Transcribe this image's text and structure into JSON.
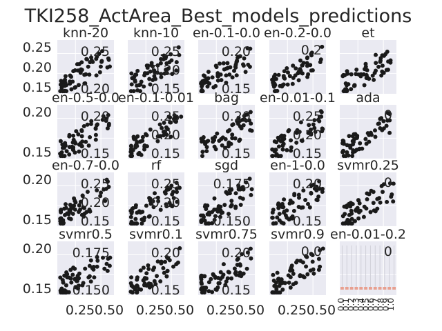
{
  "title": "TKI258_ActArea_Best_models_predictions",
  "colors": {
    "panel_bg": "#eaeaf2",
    "grid": "#ffffff",
    "point": "#1a1a1a",
    "text": "#262626",
    "bar": "#e8a090"
  },
  "chart_data": [
    {
      "type": "scatter",
      "title": "knn-20",
      "xlim": [
        0.1,
        0.55
      ],
      "ylim": [
        0.12,
        0.26
      ],
      "left_ticks": [
        "0.25",
        "0.20",
        "0.15"
      ],
      "right_ticks": [
        "0.25",
        "0.20"
      ],
      "bottom_ticks": []
    },
    {
      "type": "scatter",
      "title": "knn-10",
      "xlim": [
        0.1,
        0.55
      ],
      "ylim": [
        0.12,
        0.26
      ],
      "left_ticks": [],
      "right_ticks": [
        "0.25",
        "0.20",
        "0.15"
      ],
      "bottom_ticks": []
    },
    {
      "type": "scatter",
      "title": "en-0.1-0.0",
      "xlim": [
        0.1,
        0.55
      ],
      "ylim": [
        0.12,
        0.26
      ],
      "left_ticks": [],
      "right_ticks": [
        "0.20",
        "0.15"
      ],
      "bottom_ticks": []
    },
    {
      "type": "scatter",
      "title": "en-0.2-0.0",
      "xlim": [
        0.1,
        0.55
      ],
      "ylim": [
        0.12,
        0.26
      ],
      "left_ticks": [],
      "right_ticks": [
        "0.2"
      ],
      "bottom_ticks": []
    },
    {
      "type": "scatter",
      "title": "et",
      "xlim": [
        0.1,
        0.55
      ],
      "ylim": [
        0.12,
        0.26
      ],
      "left_ticks": [],
      "right_ticks": [],
      "bottom_ticks": []
    },
    {
      "type": "scatter",
      "title": "en-0.5-0.0",
      "xlim": [
        0.1,
        0.55
      ],
      "ylim": [
        0.13,
        0.22
      ],
      "left_ticks": [
        "0.20",
        "0.15"
      ],
      "right_ticks": [
        "0.20",
        "0.15"
      ],
      "bottom_ticks": []
    },
    {
      "type": "scatter",
      "title": "en-0.1-0.01",
      "xlim": [
        0.1,
        0.55
      ],
      "ylim": [
        0.13,
        0.22
      ],
      "left_ticks": [],
      "right_ticks": [
        "0.25",
        "0.20",
        "0.15"
      ],
      "bottom_ticks": []
    },
    {
      "type": "scatter",
      "title": "bag",
      "xlim": [
        0.1,
        0.55
      ],
      "ylim": [
        0.13,
        0.22
      ],
      "left_ticks": [],
      "right_ticks": [
        "0.20",
        "0.15"
      ],
      "bottom_ticks": []
    },
    {
      "type": "scatter",
      "title": "en-0.01-0.1",
      "xlim": [
        0.1,
        0.55
      ],
      "ylim": [
        0.13,
        0.22
      ],
      "left_ticks": [],
      "right_ticks": [
        "0.25",
        "0.20",
        "0.15"
      ],
      "bottom_ticks": []
    },
    {
      "type": "scatter",
      "title": "ada",
      "xlim": [
        0.1,
        0.55
      ],
      "ylim": [
        0.13,
        0.22
      ],
      "left_ticks": [],
      "right_ticks": [
        "0"
      ],
      "bottom_ticks": []
    },
    {
      "type": "scatter",
      "title": "en-0.7-0.0",
      "xlim": [
        0.1,
        0.55
      ],
      "ylim": [
        0.13,
        0.22
      ],
      "left_ticks": [
        "0.20",
        "0.15"
      ],
      "right_ticks": [
        "0.25",
        "0.20",
        "0.15"
      ],
      "bottom_ticks": []
    },
    {
      "type": "scatter",
      "title": "rf",
      "xlim": [
        0.1,
        0.55
      ],
      "ylim": [
        0.13,
        0.22
      ],
      "left_ticks": [],
      "right_ticks": [
        "0.25",
        "0.20",
        "0.15"
      ],
      "bottom_ticks": []
    },
    {
      "type": "scatter",
      "title": "sgd",
      "xlim": [
        0.1,
        0.55
      ],
      "ylim": [
        0.13,
        0.22
      ],
      "left_ticks": [],
      "right_ticks": [
        "0.175",
        "0.150"
      ],
      "bottom_ticks": []
    },
    {
      "type": "scatter",
      "title": "en-1-0.0",
      "xlim": [
        0.1,
        0.55
      ],
      "ylim": [
        0.13,
        0.22
      ],
      "left_ticks": [],
      "right_ticks": [
        "0.20",
        "0.15"
      ],
      "bottom_ticks": []
    },
    {
      "type": "scatter",
      "title": "svmr0.25",
      "xlim": [
        0.1,
        0.55
      ],
      "ylim": [
        0.13,
        0.22
      ],
      "left_ticks": [],
      "right_ticks": [
        "0"
      ],
      "bottom_ticks": []
    },
    {
      "type": "scatter",
      "title": "svmr0.5",
      "xlim": [
        0.1,
        0.55
      ],
      "ylim": [
        0.13,
        0.22
      ],
      "left_ticks": [
        "0.20",
        "0.15"
      ],
      "right_ticks": [
        "0.175",
        "0.150"
      ],
      "bottom_ticks": [
        "0.25",
        "0.50"
      ]
    },
    {
      "type": "scatter",
      "title": "svmr0.1",
      "xlim": [
        0.1,
        0.55
      ],
      "ylim": [
        0.13,
        0.22
      ],
      "left_ticks": [],
      "right_ticks": [
        "0.20",
        "0.15"
      ],
      "bottom_ticks": [
        "0.25",
        "0.50"
      ]
    },
    {
      "type": "scatter",
      "title": "svmr0.75",
      "xlim": [
        0.1,
        0.55
      ],
      "ylim": [
        0.13,
        0.22
      ],
      "left_ticks": [],
      "right_ticks": [
        "0.20",
        "0.15"
      ],
      "bottom_ticks": [
        "0.25",
        "0.50"
      ]
    },
    {
      "type": "scatter",
      "title": "svmr0.9",
      "xlim": [
        0.1,
        0.55
      ],
      "ylim": [
        0.13,
        0.22
      ],
      "left_ticks": [],
      "right_ticks": [
        "0.0"
      ],
      "bottom_ticks": [
        "0.25",
        "0.50"
      ]
    },
    {
      "type": "bar",
      "title": "en-0.01-0.2",
      "xlim": [
        0.1,
        0.55
      ],
      "ylim": [
        0.13,
        0.22
      ],
      "left_ticks": [],
      "right_ticks": [
        "0"
      ],
      "bottom_ticks": [],
      "rotated_ticks": [
        "0.0",
        "0.1",
        "0.2",
        "0.3",
        "0.4",
        "0.5",
        "0.6",
        "0.7",
        "0.8",
        "0.9",
        "1.0"
      ]
    }
  ]
}
